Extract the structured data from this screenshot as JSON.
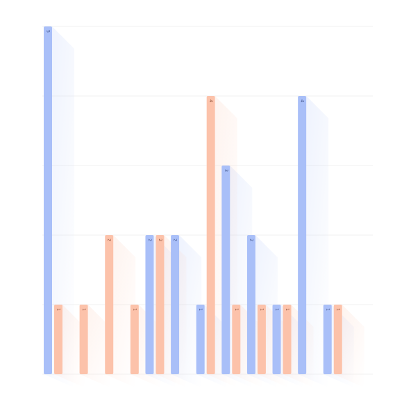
{
  "chart_data": {
    "type": "bar",
    "grid": true,
    "ylim": [
      0,
      5
    ],
    "categories": [
      "",
      "",
      "",
      "",
      "",
      "",
      "",
      "",
      "",
      "",
      "",
      "",
      ""
    ],
    "series": [
      {
        "color": "#a9bff8",
        "values": [
          5,
          null,
          null,
          null,
          2,
          2,
          1,
          3,
          2,
          1,
          4,
          1,
          null
        ]
      },
      {
        "color": "#fcc2aa",
        "values": [
          1,
          1,
          2,
          1,
          2,
          null,
          4,
          1,
          1,
          1,
          null,
          1,
          null
        ]
      }
    ],
    "data_labels": {
      "blue": [
        "5",
        "",
        "",
        "",
        "2",
        "2",
        "1",
        "3",
        "2",
        "1",
        "4",
        "1",
        ""
      ],
      "orange": [
        "1",
        "1",
        "2",
        "1",
        "2",
        "",
        "4",
        "1",
        "1",
        "1",
        "",
        "1",
        ""
      ]
    }
  }
}
